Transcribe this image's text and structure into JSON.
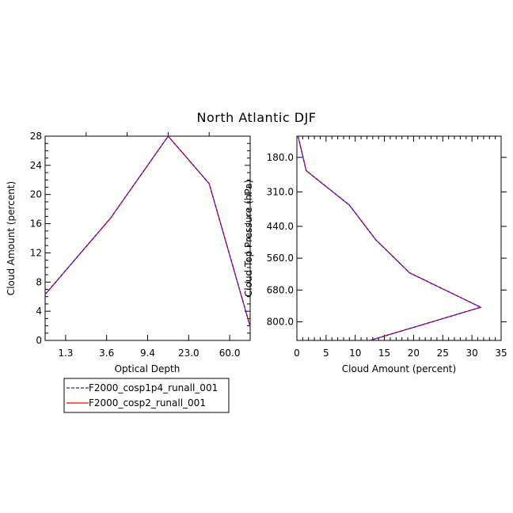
{
  "figure": {
    "title": "North Atlantic DJF"
  },
  "legend": {
    "entries": [
      {
        "label": "F2000_cosp1p4_runall_001",
        "color": "#2a1cd8",
        "dash": true
      },
      {
        "label": "F2000_cosp2_runall_001",
        "color": "#ff0000",
        "dash": false
      }
    ]
  },
  "chart_data": [
    {
      "type": "line",
      "xlabel": "Optical Depth",
      "ylabel": "Cloud Amount (percent)",
      "ylim": [
        0,
        28
      ],
      "x_tick_labels": [
        "1.3",
        "3.6",
        "9.4",
        "23.0",
        "60.0"
      ],
      "y_tick_labels": [
        "0",
        "4",
        "8",
        "12",
        "16",
        "20",
        "24",
        "28"
      ],
      "x_categories": [
        "1.3",
        "3.6",
        "9.4",
        "23.0",
        "60.0"
      ],
      "series": [
        {
          "name": "F2000_cosp1p4_runall_001",
          "x_index": [
            -0.5,
            1.1,
            2.5,
            3.5,
            4.5
          ],
          "values": [
            6.3,
            16.8,
            28.0,
            21.5,
            1.9
          ]
        },
        {
          "name": "F2000_cosp2_runall_001",
          "x_index": [
            -0.5,
            1.1,
            2.5,
            3.5,
            4.5
          ],
          "values": [
            6.3,
            16.8,
            28.0,
            21.5,
            1.9
          ]
        }
      ]
    },
    {
      "type": "line",
      "xlabel": "Cloud Amount (percent)",
      "ylabel": "Cloud Top Pressure (hPa)",
      "xlim": [
        0,
        35
      ],
      "ylim": [
        100,
        870
      ],
      "y_inverted": true,
      "x_tick_labels": [
        "0",
        "5",
        "10",
        "15",
        "20",
        "25",
        "30",
        "35"
      ],
      "y_tick_labels": [
        "180.0",
        "310.0",
        "440.0",
        "560.0",
        "680.0",
        "800.0"
      ],
      "series": [
        {
          "name": "F2000_cosp1p4_runall_001",
          "x": [
            0.2,
            1.6,
            9.0,
            13.5,
            19.3,
            31.5,
            12.5
          ],
          "y": [
            100,
            230,
            360,
            490,
            615,
            745,
            870
          ]
        },
        {
          "name": "F2000_cosp2_runall_001",
          "x": [
            0.2,
            1.6,
            9.0,
            13.5,
            19.3,
            31.5,
            12.5
          ],
          "y": [
            100,
            230,
            360,
            490,
            615,
            745,
            870
          ]
        }
      ]
    }
  ]
}
